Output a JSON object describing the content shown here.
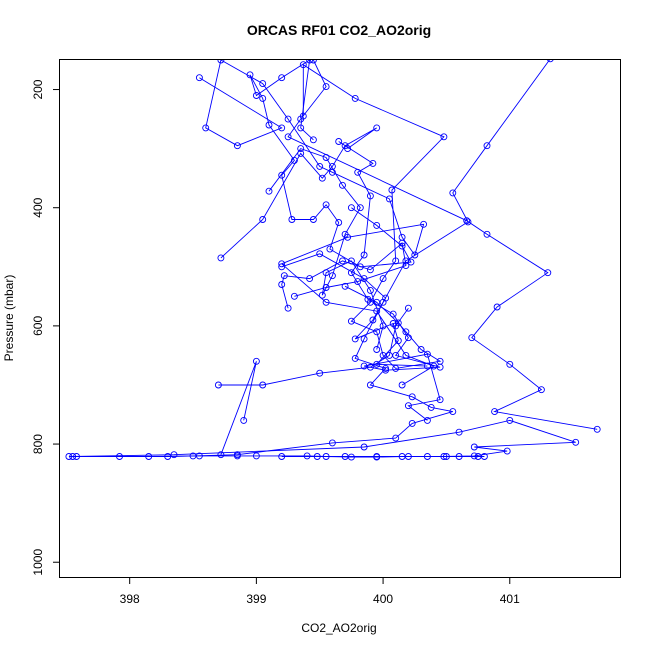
{
  "chart_data": {
    "type": "line",
    "title": "ORCAS RF01 CO2_AO2orig",
    "xlabel": "CO2_AO2orig",
    "ylabel": "Pressure (mbar)",
    "xlim": [
      397.45,
      401.87
    ],
    "ylim": [
      1025,
      150
    ],
    "y_reversed": true,
    "xticks": [
      398,
      399,
      400,
      401
    ],
    "yticks": [
      200,
      400,
      600,
      800,
      1000
    ],
    "grid": false,
    "line_color": "#0000ff",
    "marker": "open-circle",
    "series": [
      {
        "points": [
          [
            401.32,
            148
          ],
          [
            400.82,
            295
          ],
          [
            400.55,
            375
          ],
          [
            400.67,
            424
          ],
          [
            400.18,
            490
          ],
          [
            400.0,
            560
          ],
          [
            399.85,
            622
          ],
          [
            399.78,
            655
          ],
          [
            400.02,
            672
          ],
          [
            399.9,
            700
          ],
          [
            400.23,
            720
          ],
          [
            400.38,
            738
          ],
          [
            400.55,
            745
          ],
          [
            400.23,
            765
          ],
          [
            400.1,
            790
          ],
          [
            399.6,
            798
          ],
          [
            398.85,
            818
          ],
          [
            398.5,
            820
          ],
          [
            398.3,
            821
          ],
          [
            397.92,
            821
          ],
          [
            397.58,
            821
          ],
          [
            397.52,
            821
          ]
        ]
      },
      {
        "points": [
          [
            397.55,
            821
          ],
          [
            398.35,
            818
          ],
          [
            399.85,
            805
          ],
          [
            400.6,
            780
          ],
          [
            401.0,
            760
          ],
          [
            401.52,
            797
          ],
          [
            400.72,
            805
          ],
          [
            400.98,
            812
          ],
          [
            400.72,
            820
          ],
          [
            400.48,
            821
          ],
          [
            400.2,
            821
          ],
          [
            399.95,
            821
          ],
          [
            399.7,
            821
          ],
          [
            399.48,
            821
          ],
          [
            399.2,
            821
          ]
        ]
      },
      {
        "points": [
          [
            398.15,
            821
          ],
          [
            398.55,
            820
          ],
          [
            398.85,
            820
          ],
          [
            399.0,
            820
          ],
          [
            399.4,
            820
          ],
          [
            399.55,
            821
          ],
          [
            399.75,
            822
          ],
          [
            399.95,
            822
          ],
          [
            400.15,
            821
          ],
          [
            400.35,
            821
          ],
          [
            400.5,
            821
          ],
          [
            400.6,
            821
          ],
          [
            400.75,
            821
          ],
          [
            400.8,
            821
          ]
        ]
      },
      {
        "points": [
          [
            401.69,
            775
          ],
          [
            400.88,
            745
          ],
          [
            401.25,
            708
          ],
          [
            401.0,
            665
          ],
          [
            400.7,
            620
          ],
          [
            400.9,
            568
          ],
          [
            401.3,
            510
          ],
          [
            400.82,
            445
          ],
          [
            400.66,
            422
          ],
          [
            399.25,
            280
          ],
          [
            399.35,
            250
          ],
          [
            399.55,
            195
          ],
          [
            399.45,
            150
          ]
        ]
      },
      {
        "points": [
          [
            399.37,
            245
          ],
          [
            399.37,
            158
          ],
          [
            399.78,
            215
          ],
          [
            400.48,
            280
          ],
          [
            400.07,
            370
          ],
          [
            400.1,
            490
          ],
          [
            400.0,
            520
          ],
          [
            399.9,
            560
          ],
          [
            399.75,
            592
          ],
          [
            399.95,
            610
          ],
          [
            400.0,
            650
          ],
          [
            400.1,
            672
          ],
          [
            400.45,
            660
          ],
          [
            400.3,
            640
          ],
          [
            400.18,
            610
          ],
          [
            400.12,
            595
          ],
          [
            399.95,
            560
          ],
          [
            399.7,
            533
          ]
        ]
      },
      {
        "points": [
          [
            398.55,
            180
          ],
          [
            399.2,
            265
          ],
          [
            398.85,
            295
          ],
          [
            398.6,
            265
          ],
          [
            398.72,
            150
          ],
          [
            399.05,
            190
          ],
          [
            399.25,
            250
          ],
          [
            399.5,
            330
          ],
          [
            399.6,
            340
          ],
          [
            400.05,
            385
          ],
          [
            400.15,
            450
          ],
          [
            400.25,
            480
          ],
          [
            400.32,
            428
          ],
          [
            399.72,
            450
          ],
          [
            399.2,
            495
          ],
          [
            399.55,
            560
          ],
          [
            399.95,
            575
          ],
          [
            400.18,
            650
          ],
          [
            400.4,
            668
          ],
          [
            400.15,
            700
          ]
        ]
      },
      {
        "points": [
          [
            399.65,
            288
          ],
          [
            399.92,
            325
          ],
          [
            399.8,
            340
          ],
          [
            399.9,
            380
          ],
          [
            399.85,
            480
          ],
          [
            399.75,
            510
          ],
          [
            399.88,
            555
          ],
          [
            400.08,
            580
          ],
          [
            400.2,
            620
          ],
          [
            400.1,
            650
          ],
          [
            400.45,
            670
          ],
          [
            400.02,
            675
          ],
          [
            399.85,
            668
          ],
          [
            400.35,
            648
          ],
          [
            400.45,
            725
          ],
          [
            400.2,
            735
          ],
          [
            400.35,
            760
          ]
        ]
      },
      {
        "points": [
          [
            399.45,
            285
          ],
          [
            399.35,
            265
          ],
          [
            399.42,
            150
          ],
          [
            399.2,
            180
          ],
          [
            399.0,
            210
          ],
          [
            398.95,
            175
          ],
          [
            399.05,
            215
          ],
          [
            399.1,
            260
          ],
          [
            399.3,
            320
          ],
          [
            399.2,
            345
          ],
          [
            399.28,
            420
          ],
          [
            399.45,
            420
          ],
          [
            399.55,
            395
          ],
          [
            399.65,
            425
          ],
          [
            399.58,
            470
          ],
          [
            399.82,
            500
          ],
          [
            400.22,
            492
          ],
          [
            400.15,
            465
          ],
          [
            399.95,
            430
          ],
          [
            399.75,
            400
          ]
        ]
      },
      {
        "points": [
          [
            399.1,
            372
          ],
          [
            399.35,
            300
          ],
          [
            399.55,
            315
          ],
          [
            399.68,
            362
          ],
          [
            399.82,
            400
          ],
          [
            399.7,
            445
          ],
          [
            399.6,
            515
          ],
          [
            399.52,
            548
          ],
          [
            399.55,
            510
          ],
          [
            399.75,
            490
          ],
          [
            399.9,
            540
          ],
          [
            400.0,
            600
          ],
          [
            399.95,
            640
          ]
        ]
      },
      {
        "points": [
          [
            398.72,
            485
          ],
          [
            399.05,
            420
          ],
          [
            399.35,
            308
          ],
          [
            399.52,
            350
          ],
          [
            399.6,
            330
          ],
          [
            399.7,
            295
          ],
          [
            399.95,
            265
          ],
          [
            399.72,
            300
          ]
        ]
      },
      {
        "points": [
          [
            399.25,
            570
          ],
          [
            399.2,
            530
          ],
          [
            399.22,
            515
          ],
          [
            399.42,
            520
          ],
          [
            399.68,
            490
          ],
          [
            399.9,
            505
          ],
          [
            400.15,
            460
          ],
          [
            400.18,
            498
          ],
          [
            399.8,
            525
          ],
          [
            399.55,
            535
          ],
          [
            399.3,
            550
          ]
        ]
      },
      {
        "points": [
          [
            399.2,
            500
          ],
          [
            399.5,
            478
          ],
          [
            399.85,
            520
          ],
          [
            400.02,
            553
          ],
          [
            399.92,
            590
          ],
          [
            399.78,
            622
          ],
          [
            400.08,
            596
          ],
          [
            400.12,
            625
          ],
          [
            399.95,
            665
          ],
          [
            400.35,
            668
          ]
        ]
      },
      {
        "points": [
          [
            398.7,
            700
          ],
          [
            399.05,
            700
          ],
          [
            399.5,
            680
          ],
          [
            399.9,
            670
          ],
          [
            400.05,
            650
          ],
          [
            400.1,
            600
          ],
          [
            400.2,
            570
          ]
        ]
      },
      {
        "points": [
          [
            398.72,
            818
          ],
          [
            399.0,
            660
          ],
          [
            398.9,
            760
          ]
        ]
      }
    ]
  }
}
